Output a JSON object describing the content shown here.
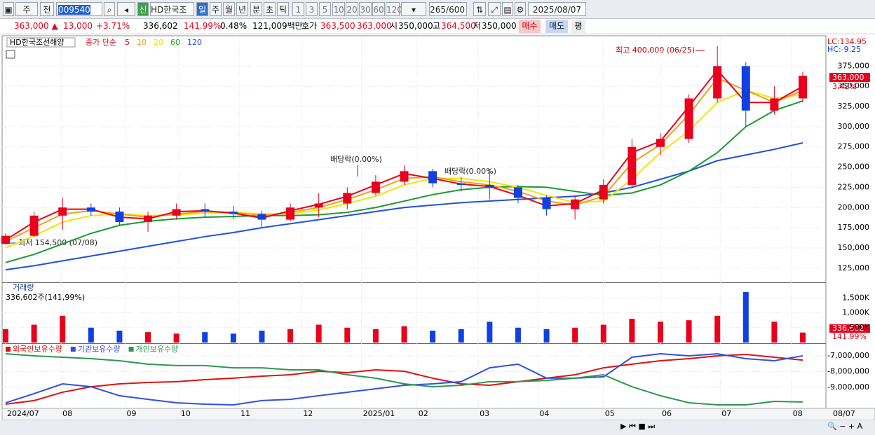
{
  "toolbar": {
    "items": [
      "주",
      "전",
      "009540",
      "신",
      "HD한국조선",
      "일",
      "주",
      "월",
      "년",
      "분",
      "초",
      "틱",
      "1",
      "3",
      "5",
      "10",
      "20",
      "30",
      "60",
      "120",
      "265",
      "/600",
      "2025/08/07"
    ]
  },
  "infobar": {
    "items": [
      "363,000 ▲",
      "13,000",
      "+3.71%",
      "336,602",
      "141.99%",
      "0.48%",
      "121,009백만",
      "호가",
      "363,500",
      "363,000",
      "시",
      "350,000",
      "고",
      "364,500",
      "저",
      "350,000",
      "매수",
      "매도",
      "평"
    ]
  },
  "chart_data": [
    {
      "type": "candlestick",
      "legend": [
        "HD한국조선해양",
        "종가 단순",
        "5",
        "10",
        "20",
        "60",
        "120"
      ],
      "up_color": "#e8001c",
      "down_color": "#1040e0",
      "open": [
        155000,
        165000,
        190000,
        200000,
        195000,
        182000,
        190000,
        198000,
        195000,
        192000,
        185000,
        200000,
        205000,
        218000,
        232000,
        245000,
        230000,
        228000,
        225000,
        212000,
        198000,
        210000,
        228000,
        275000,
        285000,
        335000,
        375000,
        320000,
        335000
      ],
      "high": [
        168000,
        195000,
        212000,
        205000,
        200000,
        195000,
        205000,
        205000,
        202000,
        196000,
        205000,
        218000,
        225000,
        240000,
        252000,
        248000,
        238000,
        248000,
        228000,
        215000,
        215000,
        235000,
        285000,
        292000,
        340000,
        400000,
        380000,
        350000,
        368000
      ],
      "low": [
        154500,
        163000,
        172000,
        190000,
        178000,
        170000,
        185000,
        188000,
        186000,
        175000,
        183000,
        188000,
        198000,
        215000,
        228000,
        225000,
        220000,
        210000,
        205000,
        190000,
        185000,
        205000,
        225000,
        265000,
        280000,
        330000,
        300000,
        315000,
        330000
      ],
      "close": [
        165000,
        190000,
        200000,
        195000,
        182000,
        190000,
        198000,
        195000,
        192000,
        185000,
        200000,
        205000,
        218000,
        232000,
        245000,
        230000,
        228000,
        225000,
        212000,
        198000,
        210000,
        228000,
        275000,
        285000,
        335000,
        375000,
        320000,
        335000,
        363000
      ],
      "series": [
        {
          "name": "5",
          "color": "#e8001c",
          "values": [
            160000,
            182000,
            198000,
            198000,
            188000,
            186000,
            195000,
            196000,
            193000,
            187000,
            196000,
            204000,
            214000,
            228000,
            242000,
            236000,
            229000,
            226000,
            215000,
            202000,
            205000,
            222000,
            268000,
            282000,
            325000,
            370000,
            330000,
            330000,
            350000
          ]
        },
        {
          "name": "10",
          "color": "#f0a020",
          "values": [
            158000,
            175000,
            192000,
            196000,
            192000,
            188000,
            192000,
            195000,
            194000,
            190000,
            194000,
            200000,
            210000,
            222000,
            236000,
            238000,
            232000,
            228000,
            220000,
            208000,
            203000,
            214000,
            255000,
            278000,
            315000,
            360000,
            345000,
            330000,
            345000
          ]
        },
        {
          "name": "20",
          "color": "#f5e400",
          "values": [
            150000,
            165000,
            182000,
            190000,
            192000,
            190000,
            191000,
            193000,
            194000,
            192000,
            192000,
            197000,
            205000,
            214000,
            228000,
            236000,
            236000,
            232000,
            225000,
            215000,
            206000,
            208000,
            235000,
            268000,
            295000,
            330000,
            345000,
            335000,
            340000
          ]
        },
        {
          "name": "60",
          "color": "#1a9a30",
          "values": [
            132000,
            142000,
            155000,
            168000,
            178000,
            183000,
            186000,
            188000,
            189000,
            190000,
            190000,
            191000,
            194000,
            200000,
            208000,
            216000,
            222000,
            225000,
            226000,
            225000,
            220000,
            215000,
            218000,
            228000,
            245000,
            268000,
            300000,
            320000,
            332000
          ]
        },
        {
          "name": "120",
          "color": "#2050e0",
          "values": [
            123000,
            128000,
            134000,
            140000,
            146000,
            152000,
            158000,
            164000,
            169000,
            175000,
            180000,
            185000,
            190000,
            195000,
            200000,
            203000,
            206000,
            208000,
            210000,
            212000,
            214000,
            218000,
            225000,
            235000,
            245000,
            258000,
            265000,
            272000,
            280000
          ]
        }
      ],
      "ylim": [
        107500,
        411700
      ],
      "yticks": [
        {
          "value": 125000,
          "label": "125,000"
        },
        {
          "value": 150000,
          "label": "150,000"
        },
        {
          "value": 175000,
          "label": "175,000"
        },
        {
          "value": 200000,
          "label": "200,000"
        },
        {
          "value": 225000,
          "label": "225,000"
        },
        {
          "value": 250000,
          "label": "250,000"
        },
        {
          "value": 275000,
          "label": "275,000"
        },
        {
          "value": 300000,
          "label": "300,000"
        },
        {
          "value": 325000,
          "label": "325,000"
        },
        {
          "value": 350000,
          "label": "350,000"
        },
        {
          "value": 375000,
          "label": "375,000"
        }
      ],
      "xticks": [
        {
          "value": 0,
          "label": "2024/07"
        },
        {
          "value": 1.95,
          "label": "08"
        },
        {
          "value": 4.2,
          "label": "09"
        },
        {
          "value": 6.1,
          "label": "10"
        },
        {
          "value": 8.2,
          "label": "11"
        },
        {
          "value": 10.4,
          "label": "12"
        },
        {
          "value": 12.5,
          "label": "2025/01"
        },
        {
          "value": 14.45,
          "label": "02"
        },
        {
          "value": 16.6,
          "label": "03"
        },
        {
          "value": 18.7,
          "label": "04"
        },
        {
          "value": 21.0,
          "label": "05"
        },
        {
          "value": 23.0,
          "label": "06"
        },
        {
          "value": 25.1,
          "label": "07"
        },
        {
          "value": 27.6,
          "label": "08"
        }
      ],
      "x_end_label": "08/07",
      "annotations": [
        "최고 400,000 (06/25)",
        "최저 154,500 (07/08)",
        "배당락(0.00%)",
        "배당락(0.00%)"
      ],
      "right_labels": [
        "LC:134.95",
        "HC:-9.25",
        "363,000",
        "3.42%"
      ]
    },
    {
      "type": "bar",
      "title": "거래량",
      "subtitle": "336,602주(141,99%)",
      "values": [
        450000,
        600000,
        900000,
        500000,
        400000,
        350000,
        300000,
        350000,
        300000,
        400000,
        450000,
        600000,
        500000,
        450000,
        550000,
        400000,
        450000,
        700000,
        500000,
        450000,
        500000,
        600000,
        800000,
        700000,
        750000,
        900000,
        1700000,
        700000,
        336602
      ],
      "ylim": [
        0,
        1980000
      ],
      "yticks": [
        {
          "value": 500000,
          "label": "500K"
        },
        {
          "value": 1000000,
          "label": "1,000K"
        },
        {
          "value": 1500000,
          "label": "1,500K"
        }
      ],
      "right_labels": [
        "336,602",
        "141.99%"
      ]
    },
    {
      "type": "line",
      "series": [
        {
          "name": "외국인보유수량",
          "color": "#e01010",
          "values": [
            -10070000,
            -9840000,
            -9310000,
            -8960000,
            -8780000,
            -8690000,
            -8640000,
            -8510000,
            -8420000,
            -8290000,
            -8200000,
            -7980000,
            -8070000,
            -7890000,
            -7980000,
            -8420000,
            -8780000,
            -8870000,
            -8640000,
            -8420000,
            -8200000,
            -7760000,
            -7530000,
            -7310000,
            -7180000,
            -7000000,
            -6910000,
            -7090000,
            -7270000
          ]
        },
        {
          "name": "기관보유수량",
          "color": "#3050e0",
          "values": [
            -9980000,
            -9400000,
            -8780000,
            -8960000,
            -9530000,
            -9760000,
            -9980000,
            -10070000,
            -10110000,
            -9840000,
            -9760000,
            -9530000,
            -9310000,
            -9090000,
            -8870000,
            -8780000,
            -8640000,
            -7760000,
            -7530000,
            -8420000,
            -8420000,
            -8330000,
            -7090000,
            -6870000,
            -7000000,
            -6870000,
            -7180000,
            -7310000,
            -7000000
          ]
        },
        {
          "name": "개인보유수량",
          "color": "#2a9a50",
          "values": [
            -6870000,
            -7000000,
            -7090000,
            -7180000,
            -7310000,
            -7530000,
            -7620000,
            -7620000,
            -7760000,
            -7760000,
            -7890000,
            -7890000,
            -8200000,
            -8420000,
            -8780000,
            -8960000,
            -8870000,
            -8640000,
            -8640000,
            -8560000,
            -8420000,
            -8200000,
            -8960000,
            -9530000,
            -9980000,
            -10110000,
            -10110000,
            -9890000,
            -9930000
          ]
        }
      ],
      "ylim": [
        -10290000,
        -6290000
      ],
      "yticks": [
        {
          "value": -7000000,
          "label": "-7,000,000"
        },
        {
          "value": -8000000,
          "label": "-8,000,000"
        },
        {
          "value": -9000000,
          "label": "-9,000,000"
        }
      ]
    }
  ]
}
